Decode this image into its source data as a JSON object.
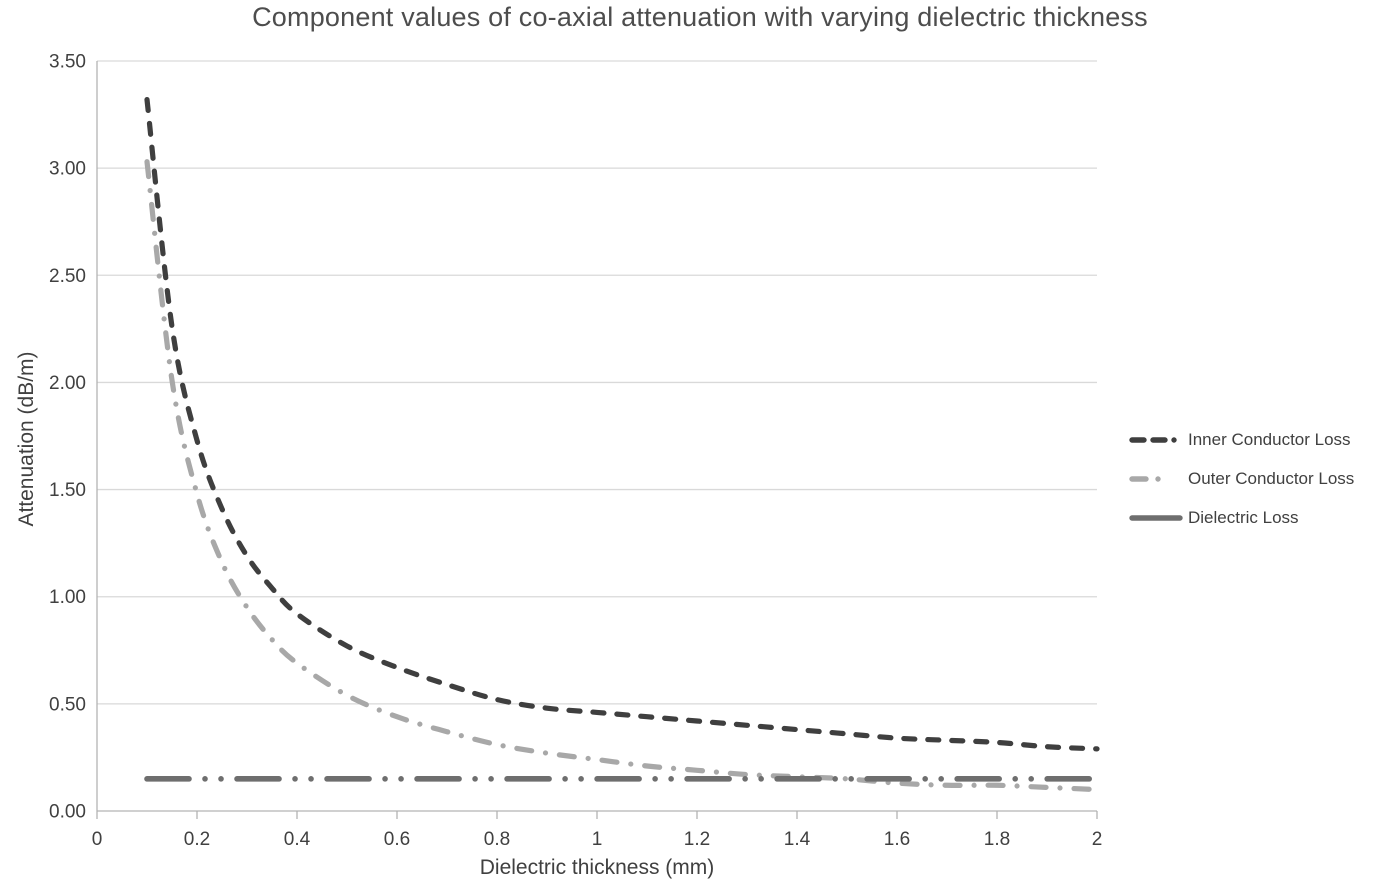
{
  "chart_data": {
    "type": "line",
    "title": "Component values of co-axial attenuation with varying dielectric thickness",
    "xlabel": "Dielectric thickness (mm)",
    "ylabel": "Attenuation (dB/m)",
    "xlim": [
      0,
      2
    ],
    "ylim": [
      0,
      3.5
    ],
    "x_tick_labels": [
      "0",
      "0.2",
      "0.4",
      "0.6",
      "0.8",
      "1",
      "1.2",
      "1.4",
      "1.6",
      "1.8",
      "2"
    ],
    "y_tick_labels": [
      "0.00",
      "0.50",
      "1.00",
      "1.50",
      "2.00",
      "2.50",
      "3.00",
      "3.50"
    ],
    "grid": "horizontal",
    "legend_position": "right-middle",
    "colors": {
      "grid": "#d9d9d9",
      "axis": "#b3b3b3",
      "tick_text": "#404040",
      "title_text": "#4d4d4d"
    },
    "series": [
      {
        "name": "Inner Conductor Loss",
        "color": "#3f3f3f",
        "dash": "dash",
        "x": [
          0.1,
          0.15,
          0.2,
          0.25,
          0.3,
          0.35,
          0.4,
          0.5,
          0.6,
          0.7,
          0.8,
          0.9,
          1.0,
          1.1,
          1.2,
          1.3,
          1.4,
          1.5,
          1.6,
          1.7,
          1.8,
          1.9,
          2.0
        ],
        "y": [
          3.32,
          2.26,
          1.73,
          1.41,
          1.19,
          1.04,
          0.92,
          0.77,
          0.67,
          0.59,
          0.52,
          0.48,
          0.46,
          0.44,
          0.42,
          0.4,
          0.38,
          0.36,
          0.34,
          0.33,
          0.32,
          0.3,
          0.29
        ]
      },
      {
        "name": "Outer Conductor Loss",
        "color": "#a8a8a8",
        "dash": "dash-dot",
        "x": [
          0.1,
          0.15,
          0.2,
          0.25,
          0.3,
          0.35,
          0.4,
          0.5,
          0.6,
          0.7,
          0.8,
          0.9,
          1.0,
          1.1,
          1.2,
          1.3,
          1.4,
          1.5,
          1.6,
          1.7,
          1.8,
          1.9,
          2.0
        ],
        "y": [
          3.03,
          2.01,
          1.48,
          1.16,
          0.95,
          0.8,
          0.69,
          0.54,
          0.44,
          0.37,
          0.31,
          0.27,
          0.24,
          0.21,
          0.19,
          0.17,
          0.16,
          0.15,
          0.13,
          0.12,
          0.12,
          0.11,
          0.1
        ]
      },
      {
        "name": "Dielectric Loss",
        "color": "#6e6e6e",
        "dash": "dash-dot-dot",
        "x": [
          0.1,
          2.0
        ],
        "y": [
          0.15,
          0.15
        ]
      }
    ]
  }
}
